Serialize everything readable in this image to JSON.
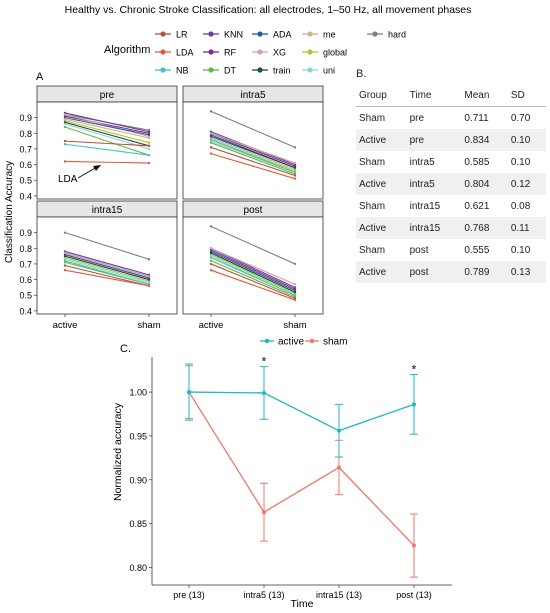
{
  "figure_title": "Healthy vs. Chronic Stroke Classification: all electrodes, 1–50 Hz, all movement phases",
  "legend": {
    "title": "Algorithm",
    "items": [
      {
        "name": "LR",
        "color": "#b5533c"
      },
      {
        "name": "KNN",
        "color": "#6a3d9a"
      },
      {
        "name": "ADA",
        "color": "#2457a8"
      },
      {
        "name": "me",
        "color": "#c9b48a"
      },
      {
        "name": "hard",
        "color": "#7f7f7f"
      },
      {
        "name": "LDA",
        "color": "#e05a3a"
      },
      {
        "name": "RF",
        "color": "#7b2d8e"
      },
      {
        "name": "XG",
        "color": "#d4a3a3"
      },
      {
        "name": "global",
        "color": "#b8c428"
      },
      {
        "name": "NB",
        "color": "#3fc3c7"
      },
      {
        "name": "DT",
        "color": "#63b844"
      },
      {
        "name": "train",
        "color": "#1f4d3f"
      },
      {
        "name": "uni",
        "color": "#8ed4d6"
      }
    ]
  },
  "panel_A": {
    "label": "A",
    "ylabel": "Classification Accuracy",
    "annotation": "LDA",
    "yticks": [
      "0.4",
      "0.5",
      "0.6",
      "0.7",
      "0.8",
      "0.9"
    ],
    "xticks": [
      "active",
      "sham"
    ]
  },
  "panel_B": {
    "label": "B.",
    "headers": [
      "Group",
      "Time",
      "Mean",
      "SD"
    ],
    "rows": [
      [
        "Sham",
        "pre",
        "0.711",
        "0.70"
      ],
      [
        "Active",
        "pre",
        "0.834",
        "0.10"
      ],
      [
        "Sham",
        "intra5",
        "0.585",
        "0.10"
      ],
      [
        "Active",
        "intra5",
        "0.804",
        "0.12"
      ],
      [
        "Sham",
        "intra15",
        "0.621",
        "0.08"
      ],
      [
        "Active",
        "intra15",
        "0.768",
        "0.11"
      ],
      [
        "Sham",
        "post",
        "0.555",
        "0.10"
      ],
      [
        "Active",
        "post",
        "0.789",
        "0.13"
      ]
    ]
  },
  "panel_C": {
    "label": "C.",
    "star": "*"
  },
  "chart_data": [
    {
      "type": "line",
      "panel": "A",
      "ylabel": "Classification Accuracy",
      "ylim": [
        0.38,
        1.0
      ],
      "categories": [
        "active",
        "sham"
      ],
      "facets": [
        {
          "title": "pre",
          "series": [
            {
              "name": "hard",
              "values": [
                0.92,
                0.82
              ]
            },
            {
              "name": "KNN",
              "values": [
                0.93,
                0.81
              ]
            },
            {
              "name": "RF",
              "values": [
                0.91,
                0.8
              ]
            },
            {
              "name": "XG",
              "values": [
                0.92,
                0.78
              ]
            },
            {
              "name": "ADA",
              "values": [
                0.9,
                0.79
              ]
            },
            {
              "name": "me",
              "values": [
                0.89,
                0.77
              ]
            },
            {
              "name": "global",
              "values": [
                0.88,
                0.74
              ]
            },
            {
              "name": "train",
              "values": [
                0.87,
                0.72
              ]
            },
            {
              "name": "uni",
              "values": [
                0.86,
                0.7
              ]
            },
            {
              "name": "DT",
              "values": [
                0.84,
                0.66
              ]
            },
            {
              "name": "LR",
              "values": [
                0.75,
                0.72
              ]
            },
            {
              "name": "NB",
              "values": [
                0.73,
                0.66
              ]
            },
            {
              "name": "LDA",
              "values": [
                0.62,
                0.61
              ]
            }
          ]
        },
        {
          "title": "intra5",
          "series": [
            {
              "name": "hard",
              "values": [
                0.94,
                0.71
              ]
            },
            {
              "name": "KNN",
              "values": [
                0.81,
                0.6
              ]
            },
            {
              "name": "RF",
              "values": [
                0.8,
                0.59
              ]
            },
            {
              "name": "ADA",
              "values": [
                0.79,
                0.58
              ]
            },
            {
              "name": "XG",
              "values": [
                0.8,
                0.61
              ]
            },
            {
              "name": "me",
              "values": [
                0.77,
                0.57
              ]
            },
            {
              "name": "global",
              "values": [
                0.76,
                0.56
              ]
            },
            {
              "name": "train",
              "values": [
                0.78,
                0.58
              ]
            },
            {
              "name": "uni",
              "values": [
                0.75,
                0.55
              ]
            },
            {
              "name": "DT",
              "values": [
                0.74,
                0.54
              ]
            },
            {
              "name": "NB",
              "values": [
                0.76,
                0.55
              ]
            },
            {
              "name": "LR",
              "values": [
                0.71,
                0.53
              ]
            },
            {
              "name": "LDA",
              "values": [
                0.67,
                0.51
              ]
            }
          ]
        },
        {
          "title": "intra15",
          "series": [
            {
              "name": "hard",
              "values": [
                0.9,
                0.73
              ]
            },
            {
              "name": "KNN",
              "values": [
                0.78,
                0.63
              ]
            },
            {
              "name": "RF",
              "values": [
                0.77,
                0.62
              ]
            },
            {
              "name": "ADA",
              "values": [
                0.76,
                0.61
              ]
            },
            {
              "name": "XG",
              "values": [
                0.77,
                0.62
              ]
            },
            {
              "name": "me",
              "values": [
                0.75,
                0.6
              ]
            },
            {
              "name": "global",
              "values": [
                0.74,
                0.59
              ]
            },
            {
              "name": "train",
              "values": [
                0.75,
                0.6
              ]
            },
            {
              "name": "uni",
              "values": [
                0.73,
                0.58
              ]
            },
            {
              "name": "DT",
              "values": [
                0.71,
                0.57
              ]
            },
            {
              "name": "NB",
              "values": [
                0.72,
                0.57
              ]
            },
            {
              "name": "LR",
              "values": [
                0.69,
                0.56
              ]
            },
            {
              "name": "LDA",
              "values": [
                0.66,
                0.56
              ]
            }
          ]
        },
        {
          "title": "post",
          "series": [
            {
              "name": "hard",
              "values": [
                0.94,
                0.7
              ]
            },
            {
              "name": "KNN",
              "values": [
                0.8,
                0.55
              ]
            },
            {
              "name": "RF",
              "values": [
                0.79,
                0.54
              ]
            },
            {
              "name": "ADA",
              "values": [
                0.78,
                0.53
              ]
            },
            {
              "name": "XG",
              "values": [
                0.8,
                0.57
              ]
            },
            {
              "name": "me",
              "values": [
                0.77,
                0.52
              ]
            },
            {
              "name": "global",
              "values": [
                0.76,
                0.51
              ]
            },
            {
              "name": "train",
              "values": [
                0.77,
                0.52
              ]
            },
            {
              "name": "uni",
              "values": [
                0.75,
                0.5
              ]
            },
            {
              "name": "DT",
              "values": [
                0.72,
                0.49
              ]
            },
            {
              "name": "NB",
              "values": [
                0.74,
                0.5
              ]
            },
            {
              "name": "LR",
              "values": [
                0.7,
                0.48
              ]
            },
            {
              "name": "LDA",
              "values": [
                0.66,
                0.47
              ]
            }
          ]
        }
      ]
    },
    {
      "type": "line",
      "panel": "C",
      "xlabel": "Time",
      "ylabel": "Normalized accuracy",
      "ylim": [
        0.78,
        1.04
      ],
      "yticks": [
        "0.80",
        "0.85",
        "0.90",
        "0.95",
        "1.00"
      ],
      "categories": [
        "pre (13)",
        "intra5 (13)",
        "intra15 (13)",
        "post (13)"
      ],
      "series": [
        {
          "name": "active",
          "color": "#1fb8c3",
          "values": [
            1.0,
            0.999,
            0.956,
            0.986
          ],
          "errors": [
            0.032,
            0.03,
            0.03,
            0.034
          ]
        },
        {
          "name": "sham",
          "color": "#f0756b",
          "values": [
            1.0,
            0.863,
            0.914,
            0.825
          ],
          "errors": [
            0.03,
            0.033,
            0.031,
            0.036
          ]
        }
      ],
      "significant": [
        "intra5 (13)",
        "post (13)"
      ]
    }
  ]
}
